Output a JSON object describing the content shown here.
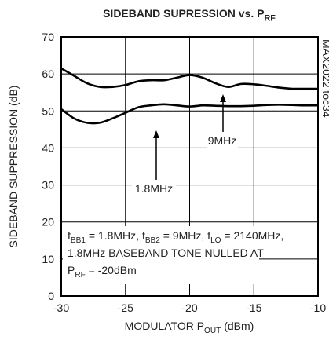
{
  "chart_data": {
    "type": "line",
    "title": [
      "SIDEBAND SUPRESSION vs. P",
      "RF"
    ],
    "xlabel": [
      "MODULATOR P",
      "OUT",
      " (dBm)"
    ],
    "ylabel": "SIDEBAND SUPPRESSION (dB)",
    "watermark": "MAX2022 toc34",
    "x": [
      -30,
      -29,
      -28,
      -27,
      -26,
      -25,
      -24,
      -23,
      -22,
      -21,
      -20,
      -19,
      -18,
      -17,
      -16,
      -15,
      -14,
      -13,
      -12,
      -11,
      -10
    ],
    "series": [
      {
        "name": "9MHz",
        "color": "#000000",
        "values": [
          61.5,
          59.5,
          57.5,
          56.5,
          56.5,
          57,
          58,
          58.3,
          58.3,
          59,
          59.7,
          59,
          57.5,
          56.5,
          57.3,
          57.2,
          56.8,
          56.3,
          56,
          56,
          56
        ]
      },
      {
        "name": "1.8MHz",
        "color": "#000000",
        "values": [
          50.5,
          48,
          46.8,
          46.8,
          48,
          49.5,
          51,
          51.5,
          51.8,
          51.5,
          51.2,
          51.5,
          51.4,
          51.3,
          51.3,
          51.4,
          51.6,
          51.7,
          51.6,
          51.5,
          51.5
        ]
      }
    ],
    "annotation": [
      [
        "f",
        "BB1",
        " = 1.8MHz, f",
        "BB2",
        " = 9MHz, f",
        "LO",
        " = 2140MHz,"
      ],
      [
        "1.8MHz BASEBAND TONE NULLED AT"
      ],
      [
        "P",
        "RF",
        " = -20dBm"
      ]
    ],
    "xlim": [
      -30,
      -10
    ],
    "xticks": [
      -30,
      -25,
      -20,
      -15,
      -10
    ],
    "ylim": [
      0,
      70
    ],
    "yticks": [
      0,
      10,
      20,
      30,
      40,
      50,
      60,
      70
    ],
    "grid": true
  }
}
